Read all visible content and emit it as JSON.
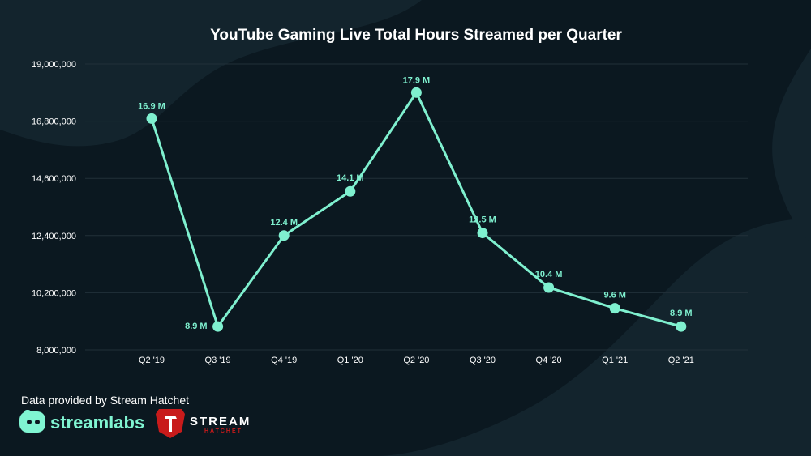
{
  "chart_data": {
    "type": "line",
    "title": "YouTube Gaming Live Total Hours Streamed per Quarter",
    "xlabel": "",
    "ylabel": "",
    "categories": [
      "Q2 '19",
      "Q3 '19",
      "Q4 '19",
      "Q1 '20",
      "Q2 '20",
      "Q3 '20",
      "Q4 '20",
      "Q1 '21",
      "Q2 '21"
    ],
    "series": [
      {
        "values": [
          16900000,
          8900000,
          12400000,
          14100000,
          17900000,
          12500000,
          10400000,
          9600000,
          8900000
        ],
        "labels": [
          "16.9 M",
          "8.9 M",
          "12.4 M",
          "14.1 M",
          "17.9 M",
          "12.5 M",
          "10.4 M",
          "9.6 M",
          "8.9 M"
        ]
      }
    ],
    "ylim": [
      8000000,
      19000000
    ],
    "yticks": [
      8000000,
      10200000,
      12400000,
      14600000,
      16800000,
      19000000
    ],
    "ytick_labels": [
      "8,000,000",
      "10,200,000",
      "12,400,000",
      "14,600,000",
      "16,800,000",
      "19,000,000"
    ],
    "grid": true,
    "legend": "none",
    "colors": {
      "line": "#7ff0cf",
      "label": "#7ff0cf",
      "grid": "#223039",
      "axis_text": "#ffffff",
      "background": "#0b1820"
    }
  },
  "footer": {
    "credit": "Data provided by Stream Hatchet",
    "streamlabs_logo": "streamlabs",
    "stream_hatchet_logo_line1": "STREAM",
    "stream_hatchet_logo_line2": "HATCHET"
  }
}
